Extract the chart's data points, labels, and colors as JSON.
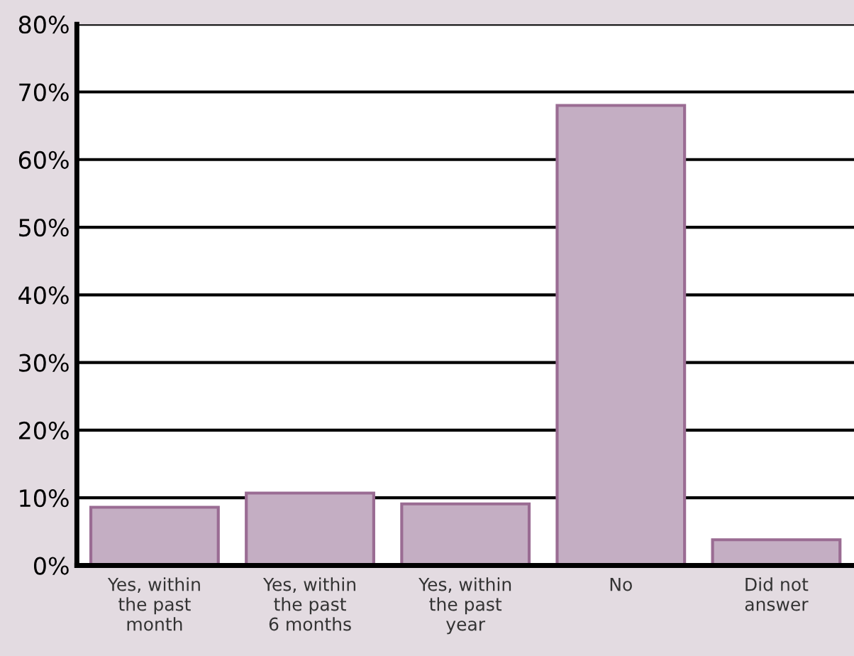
{
  "chart_data": {
    "type": "bar",
    "categories": [
      "Yes, within\nthe past\nmonth",
      "Yes, within\nthe past\n6 months",
      "Yes, within\nthe past\nyear",
      "No",
      "Did not\nanswer"
    ],
    "values": [
      8.6,
      10.7,
      9.1,
      68,
      3.8
    ],
    "color": "#c4aec3",
    "ylim": [
      0,
      80
    ],
    "yticks": [
      {
        "value": 0,
        "label": "0%"
      },
      {
        "value": 10,
        "label": "10%"
      },
      {
        "value": 20,
        "label": "20%"
      },
      {
        "value": 30,
        "label": "30%"
      },
      {
        "value": 40,
        "label": "40%"
      },
      {
        "value": 50,
        "label": "50%"
      },
      {
        "value": 60,
        "label": "60%"
      },
      {
        "value": 70,
        "label": "70%"
      },
      {
        "value": 80,
        "label": "80%"
      }
    ],
    "grid": "y",
    "legend": false
  }
}
